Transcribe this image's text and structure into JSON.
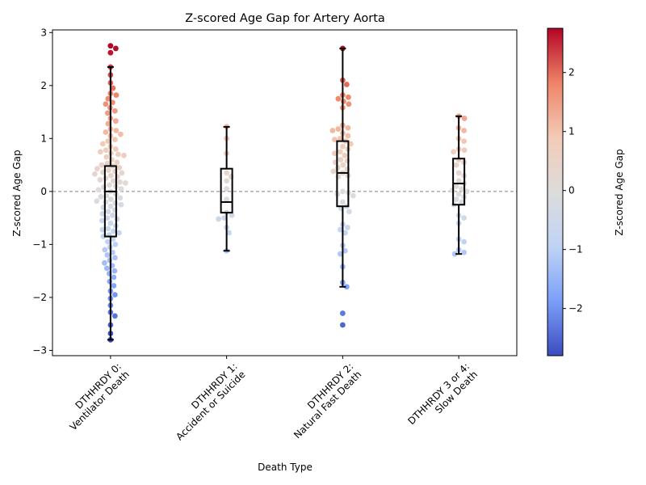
{
  "chart_data": {
    "type": "scatter",
    "subtype": "swarm-with-boxplot",
    "title": "Z-scored Age Gap for Artery Aorta",
    "xlabel": "Death Type",
    "ylabel": "Z-scored Age Gap",
    "ylim": [
      -3.1,
      3.05
    ],
    "yticks": [
      -3,
      -2,
      -1,
      0,
      1,
      2,
      3
    ],
    "ytick_labels": [
      "−3",
      "−2",
      "−1",
      "0",
      "1",
      "2",
      "3"
    ],
    "reference_line": 0,
    "grid": false,
    "colormap": {
      "name": "coolwarm",
      "label": "Z-scored Age Gap",
      "min": -2.8,
      "max": 2.75,
      "ticks": [
        -2,
        -1,
        0,
        1,
        2
      ],
      "tick_labels": [
        "−2",
        "−1",
        "0",
        "1",
        "2"
      ],
      "stops": [
        "#3b4cc0",
        "#7b9ff9",
        "#c0d4f5",
        "#dddcdc",
        "#f2cbb7",
        "#ee8468",
        "#b40426"
      ]
    },
    "categories": [
      {
        "label_lines": [
          "DTHHRDY 0:",
          "Ventilator Death"
        ],
        "values": [
          2.75,
          2.7,
          2.62,
          2.35,
          2.2,
          2.05,
          1.95,
          1.85,
          1.82,
          1.75,
          1.68,
          1.65,
          1.58,
          1.52,
          1.48,
          1.38,
          1.33,
          1.28,
          1.18,
          1.15,
          1.12,
          1.08,
          1.05,
          0.98,
          0.95,
          0.9,
          0.85,
          0.8,
          0.78,
          0.75,
          0.72,
          0.7,
          0.68,
          0.65,
          0.6,
          0.55,
          0.53,
          0.5,
          0.48,
          0.45,
          0.43,
          0.4,
          0.38,
          0.36,
          0.35,
          0.33,
          0.3,
          0.28,
          0.25,
          0.22,
          0.2,
          0.18,
          0.16,
          0.12,
          0.1,
          0.08,
          0.05,
          0.03,
          0.0,
          -0.05,
          -0.08,
          -0.1,
          -0.12,
          -0.15,
          -0.18,
          -0.2,
          -0.22,
          -0.25,
          -0.28,
          -0.3,
          -0.35,
          -0.38,
          -0.42,
          -0.45,
          -0.5,
          -0.52,
          -0.55,
          -0.6,
          -0.65,
          -0.7,
          -0.72,
          -0.75,
          -0.78,
          -0.82,
          -0.85,
          -0.9,
          -0.95,
          -1.0,
          -1.05,
          -1.1,
          -1.15,
          -1.2,
          -1.25,
          -1.3,
          -1.35,
          -1.4,
          -1.45,
          -1.5,
          -1.55,
          -1.62,
          -1.7,
          -1.78,
          -1.88,
          -1.95,
          -2.02,
          -2.15,
          -2.28,
          -2.35,
          -2.52,
          -2.68,
          -2.8
        ],
        "box": {
          "q1": -0.85,
          "median": 0.0,
          "q3": 0.48,
          "whisker_low": -2.8,
          "whisker_high": 2.35
        }
      },
      {
        "label_lines": [
          "DTHHRDY 1:",
          "Accident or Suicide"
        ],
        "values": [
          1.22,
          1.0,
          0.72,
          0.35,
          0.28,
          0.2,
          0.05,
          -0.15,
          -0.4,
          -0.45,
          -0.5,
          -0.52,
          -0.68,
          -0.78,
          -1.12
        ],
        "box": {
          "q1": -0.4,
          "median": -0.2,
          "q3": 0.43,
          "whisker_low": -1.12,
          "whisker_high": 1.22
        }
      },
      {
        "label_lines": [
          "DTHHRDY 2:",
          "Natural Fast Death"
        ],
        "values": [
          2.7,
          2.1,
          2.02,
          1.82,
          1.78,
          1.75,
          1.7,
          1.65,
          1.58,
          1.25,
          1.2,
          1.18,
          1.15,
          1.1,
          1.05,
          1.0,
          0.98,
          0.95,
          0.9,
          0.85,
          0.8,
          0.75,
          0.72,
          0.68,
          0.6,
          0.58,
          0.55,
          0.5,
          0.45,
          0.42,
          0.38,
          0.35,
          0.3,
          0.28,
          0.0,
          -0.02,
          -0.05,
          -0.08,
          -0.2,
          -0.28,
          -0.32,
          -0.38,
          -0.62,
          -0.68,
          -0.72,
          -0.78,
          -1.02,
          -1.12,
          -1.18,
          -1.42,
          -1.72,
          -1.8,
          -2.3,
          -2.52
        ],
        "box": {
          "q1": -0.28,
          "median": 0.35,
          "q3": 0.95,
          "whisker_low": -1.8,
          "whisker_high": 2.7
        }
      },
      {
        "label_lines": [
          "DTHHRDY 3 or 4:",
          "Slow Death"
        ],
        "values": [
          1.42,
          1.38,
          1.2,
          1.15,
          1.0,
          0.95,
          0.8,
          0.78,
          0.75,
          0.6,
          0.55,
          0.5,
          0.35,
          0.3,
          0.2,
          0.15,
          0.1,
          0.05,
          0.02,
          0.0,
          -0.05,
          -0.1,
          -0.15,
          -0.2,
          -0.25,
          -0.45,
          -0.5,
          -0.6,
          -0.9,
          -0.95,
          -1.1,
          -1.15,
          -1.18
        ],
        "box": {
          "q1": -0.25,
          "median": 0.15,
          "q3": 0.62,
          "whisker_low": -1.18,
          "whisker_high": 1.42
        }
      }
    ]
  }
}
